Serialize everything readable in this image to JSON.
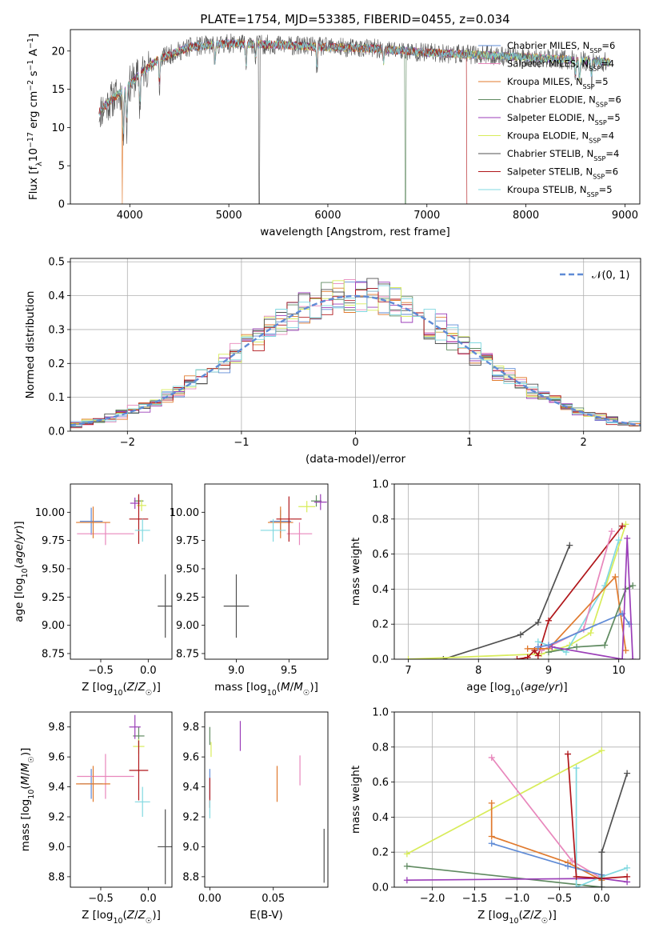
{
  "colors": [
    "#5f8bd6",
    "#e887bc",
    "#e07a2e",
    "#5f8a60",
    "#9b3eb8",
    "#d8ec5a",
    "#505050",
    "#b0161a",
    "#80d8e0"
  ],
  "series_names": [
    "Chabrier MILES, N<sub>SSP</sub>=6",
    "Salpeter MILES, N<sub>SSP</sub>=4",
    "Kroupa MILES, N<sub>SSP</sub>=5",
    "Chabrier ELODIE, N<sub>SSP</sub>=6",
    "Salpeter ELODIE, N<sub>SSP</sub>=5",
    "Kroupa ELODIE, N<sub>SSP</sub>=4",
    "Chabrier STELIB, N<sub>SSP</sub>=4",
    "Salpeter STELIB, N<sub>SSP</sub>=6",
    "Kroupa STELIB, N<sub>SSP</sub>=5"
  ],
  "chart_data": [
    {
      "id": "spectrum",
      "type": "line",
      "title": "PLATE=1754, MJD=53385, FIBERID=0455, z=0.034",
      "xlabel": "wavelength [Angstrom, rest frame]",
      "ylabel": "Flux [f<sub>λ</sub>10<sup>−17</sup> erg cm<sup>−2</sup> s<sup>−1</sup> A<sup>−1</sup>]",
      "xlim": [
        3400,
        9150
      ],
      "ylim": [
        0,
        22.8
      ],
      "xticks": [
        4000,
        5000,
        6000,
        7000,
        8000,
        9000
      ],
      "yticks": [
        0,
        5,
        10,
        15,
        20
      ],
      "grid": false,
      "legend": "upper right",
      "spectrum_range": [
        3690,
        8850
      ],
      "continuum": [
        [
          3690,
          12
        ],
        [
          3800,
          13.5
        ],
        [
          3950,
          15
        ],
        [
          4100,
          17
        ],
        [
          4300,
          19
        ],
        [
          4600,
          20.5
        ],
        [
          5000,
          21
        ],
        [
          5500,
          20.8
        ],
        [
          6000,
          20.5
        ],
        [
          6500,
          20.3
        ],
        [
          7000,
          19.8
        ],
        [
          7500,
          19.5
        ],
        [
          8000,
          19.2
        ],
        [
          8500,
          18.8
        ],
        [
          8850,
          18.5
        ]
      ],
      "absorption_lines": [
        [
          3934,
          7
        ],
        [
          3969,
          6
        ],
        [
          4102,
          5
        ],
        [
          4300,
          4
        ],
        [
          4861,
          3
        ],
        [
          5175,
          3.5
        ],
        [
          5270,
          2
        ],
        [
          5890,
          3
        ],
        [
          6563,
          2
        ],
        [
          8500,
          2.5
        ],
        [
          8542,
          3
        ],
        [
          8662,
          2.5
        ]
      ],
      "model_dropouts": [
        [
          3920,
          3925,
          2
        ],
        [
          5300,
          5310,
          6
        ],
        [
          6780,
          6790,
          3
        ],
        [
          7400,
          7430,
          7
        ]
      ]
    },
    {
      "id": "residuals",
      "type": "histogram",
      "xlabel": "(data-model)/error",
      "ylabel": "Normed distribution",
      "xlim": [
        -2.5,
        2.5
      ],
      "ylim": [
        0,
        0.51
      ],
      "xticks": [
        -2,
        -1,
        0,
        1,
        2
      ],
      "yticks": [
        0.0,
        0.1,
        0.2,
        0.3,
        0.4,
        0.5
      ],
      "grid": true,
      "legend": "upper right",
      "reference_label": "𝒩(0, 1)",
      "bin_width": 0.1,
      "bin_start": -2.5,
      "noise_seed": 7
    },
    {
      "id": "age_vs_Z",
      "type": "errorbar",
      "xlabel": "Z [log<sub>10</sub>(<i>Z</i>/<i>Z</i><sub>☉</sub>)]",
      "ylabel": "age  [log<sub>10</sub>(<i>age</i>/<i>yr</i>)]",
      "xlim": [
        -0.82,
        0.25
      ],
      "ylim": [
        8.7,
        10.25
      ],
      "xticks": [
        -0.5,
        0.0
      ],
      "yticks": [
        8.75,
        9.0,
        9.25,
        9.5,
        9.75,
        10.0
      ],
      "points": [
        {
          "s": 0,
          "x": -0.6,
          "y": 9.92,
          "xe": 0.12,
          "ye": 0.12
        },
        {
          "s": 1,
          "x": -0.45,
          "y": 9.81,
          "xe": 0.3,
          "ye": 0.1
        },
        {
          "s": 2,
          "x": -0.58,
          "y": 9.91,
          "xe": 0.18,
          "ye": 0.14
        },
        {
          "s": 3,
          "x": -0.1,
          "y": 10.1,
          "xe": 0.05,
          "ye": 0.05
        },
        {
          "s": 4,
          "x": -0.14,
          "y": 10.08,
          "xe": 0.05,
          "ye": 0.05
        },
        {
          "s": 5,
          "x": -0.07,
          "y": 10.06,
          "xe": 0.05,
          "ye": 0.05
        },
        {
          "s": 6,
          "x": 0.18,
          "y": 9.17,
          "xe": 0.08,
          "ye": 0.28
        },
        {
          "s": 7,
          "x": -0.1,
          "y": 9.94,
          "xe": 0.1,
          "ye": 0.22
        },
        {
          "s": 8,
          "x": -0.06,
          "y": 9.84,
          "xe": 0.08,
          "ye": 0.1
        }
      ]
    },
    {
      "id": "age_vs_mass",
      "type": "errorbar",
      "xlabel": "mass [log<sub>10</sub>(<i>M</i>/<i>M</i><sub>☉</sub>)]",
      "ylabel": "",
      "xlim": [
        8.7,
        9.87
      ],
      "ylim": [
        8.7,
        10.25
      ],
      "xticks": [
        9.0,
        9.5
      ],
      "yticks": [
        8.75,
        9.0,
        9.25,
        9.5,
        9.75,
        10.0
      ],
      "points": [
        {
          "s": 0,
          "x": 9.42,
          "y": 9.92,
          "xe": 0.1,
          "ye": 0.1
        },
        {
          "s": 1,
          "x": 9.6,
          "y": 9.81,
          "xe": 0.12,
          "ye": 0.1
        },
        {
          "s": 2,
          "x": 9.42,
          "y": 9.91,
          "xe": 0.12,
          "ye": 0.14
        },
        {
          "s": 3,
          "x": 9.76,
          "y": 10.1,
          "xe": 0.05,
          "ye": 0.05
        },
        {
          "s": 4,
          "x": 9.8,
          "y": 10.09,
          "xe": 0.06,
          "ye": 0.07
        },
        {
          "s": 5,
          "x": 9.67,
          "y": 10.05,
          "xe": 0.08,
          "ye": 0.05
        },
        {
          "s": 6,
          "x": 9.0,
          "y": 9.17,
          "xe": 0.12,
          "ye": 0.28
        },
        {
          "s": 7,
          "x": 9.5,
          "y": 9.94,
          "xe": 0.12,
          "ye": 0.2
        },
        {
          "s": 8,
          "x": 9.35,
          "y": 9.84,
          "xe": 0.12,
          "ye": 0.1
        }
      ]
    },
    {
      "id": "mass_vs_Z",
      "type": "errorbar",
      "xlabel": "Z [log<sub>10</sub>(<i>Z</i>/<i>Z</i><sub>☉</sub>)]",
      "ylabel": "mass [log<sub>10</sub>(<i>M</i>/<i>M</i><sub>☉</sub>)]",
      "xlim": [
        -0.82,
        0.25
      ],
      "ylim": [
        8.73,
        9.9
      ],
      "xticks": [
        -0.5,
        0.0
      ],
      "yticks": [
        8.8,
        9.0,
        9.2,
        9.4,
        9.6,
        9.8
      ],
      "points": [
        {
          "s": 0,
          "x": -0.6,
          "y": 9.42,
          "xe": 0.12,
          "ye": 0.1
        },
        {
          "s": 1,
          "x": -0.45,
          "y": 9.47,
          "xe": 0.3,
          "ye": 0.15
        },
        {
          "s": 2,
          "x": -0.58,
          "y": 9.42,
          "xe": 0.18,
          "ye": 0.12
        },
        {
          "s": 3,
          "x": -0.1,
          "y": 9.74,
          "xe": 0.06,
          "ye": 0.06
        },
        {
          "s": 4,
          "x": -0.14,
          "y": 9.8,
          "xe": 0.06,
          "ye": 0.08
        },
        {
          "s": 5,
          "x": -0.1,
          "y": 9.67,
          "xe": 0.06,
          "ye": 0.05
        },
        {
          "s": 6,
          "x": 0.18,
          "y": 9.0,
          "xe": 0.08,
          "ye": 0.25
        },
        {
          "s": 7,
          "x": -0.1,
          "y": 9.51,
          "xe": 0.1,
          "ye": 0.2
        },
        {
          "s": 8,
          "x": -0.06,
          "y": 9.3,
          "xe": 0.08,
          "ye": 0.1
        }
      ]
    },
    {
      "id": "mass_vs_ebv",
      "type": "errorbar",
      "xlabel": "E(B-V)",
      "ylabel": "",
      "xlim": [
        -0.004,
        0.093
      ],
      "ylim": [
        8.73,
        9.9
      ],
      "xticks": [
        0.0,
        0.05
      ],
      "yticks": [
        8.8,
        9.0,
        9.2,
        9.4,
        9.6,
        9.8
      ],
      "points": [
        {
          "s": 0,
          "x": 0.0,
          "y": 9.42,
          "xe": 0,
          "ye": 0.1
        },
        {
          "s": 1,
          "x": 0.071,
          "y": 9.51,
          "xe": 0,
          "ye": 0.1
        },
        {
          "s": 2,
          "x": 0.053,
          "y": 9.42,
          "xe": 0,
          "ye": 0.12
        },
        {
          "s": 3,
          "x": 0.0,
          "y": 9.74,
          "xe": 0,
          "ye": 0.06
        },
        {
          "s": 4,
          "x": 0.024,
          "y": 9.74,
          "xe": 0,
          "ye": 0.1
        },
        {
          "s": 5,
          "x": 0.001,
          "y": 9.65,
          "xe": 0,
          "ye": 0.05
        },
        {
          "s": 6,
          "x": 0.09,
          "y": 8.94,
          "xe": 0,
          "ye": 0.18
        },
        {
          "s": 7,
          "x": 0.0,
          "y": 9.36,
          "xe": 0,
          "ye": 0.1
        },
        {
          "s": 8,
          "x": 0.0,
          "y": 9.25,
          "xe": 0,
          "ye": 0.06
        }
      ]
    },
    {
      "id": "massweight_vs_age",
      "type": "line",
      "xlabel": "age  [log<sub>10</sub>(<i>age</i>/<i>yr</i>)]",
      "ylabel": "mass weight",
      "xlim": [
        6.8,
        10.3
      ],
      "ylim": [
        0,
        1.0
      ],
      "xticks": [
        7,
        8,
        9,
        10
      ],
      "yticks": [
        0.0,
        0.2,
        0.4,
        0.6,
        0.8,
        1.0
      ],
      "grid": true,
      "series": [
        {
          "s": 6,
          "pts": [
            [
              7.5,
              0.0
            ],
            [
              8.6,
              0.14
            ],
            [
              8.85,
              0.21
            ],
            [
              9.3,
              0.65
            ]
          ]
        },
        {
          "s": 5,
          "pts": [
            [
              7.0,
              0.0
            ],
            [
              8.9,
              0.03
            ],
            [
              9.3,
              0.08
            ],
            [
              9.6,
              0.15
            ],
            [
              10.1,
              0.77
            ]
          ]
        },
        {
          "s": 7,
          "pts": [
            [
              8.55,
              0.0
            ],
            [
              8.7,
              0.01
            ],
            [
              8.8,
              0.05
            ],
            [
              8.85,
              0.02
            ],
            [
              9.0,
              0.22
            ],
            [
              10.05,
              0.76
            ]
          ]
        },
        {
          "s": 8,
          "pts": [
            [
              8.85,
              0.1
            ],
            [
              9.25,
              0.04
            ],
            [
              9.8,
              0.42
            ],
            [
              10.0,
              0.68
            ]
          ]
        },
        {
          "s": 1,
          "pts": [
            [
              8.9,
              0.05
            ],
            [
              9.5,
              0.17
            ],
            [
              9.9,
              0.73
            ]
          ]
        },
        {
          "s": 2,
          "pts": [
            [
              8.7,
              0.06
            ],
            [
              9.0,
              0.06
            ],
            [
              9.95,
              0.47
            ],
            [
              10.1,
              0.05
            ]
          ]
        },
        {
          "s": 0,
          "pts": [
            [
              8.85,
              0.07
            ],
            [
              9.0,
              0.08
            ],
            [
              10.05,
              0.26
            ],
            [
              10.15,
              0.2
            ]
          ]
        },
        {
          "s": 3,
          "pts": [
            [
              9.0,
              0.04
            ],
            [
              9.4,
              0.07
            ],
            [
              9.8,
              0.08
            ],
            [
              10.1,
              0.4
            ],
            [
              10.2,
              0.42
            ]
          ]
        },
        {
          "s": 4,
          "pts": [
            [
              9.05,
              0.07
            ],
            [
              10.05,
              0.0
            ],
            [
              10.12,
              0.69
            ],
            [
              10.2,
              0.0
            ]
          ]
        }
      ]
    },
    {
      "id": "massweight_vs_Z",
      "type": "line",
      "xlabel": "Z [log<sub>10</sub>(<i>Z</i>/<i>Z</i><sub>☉</sub>)]",
      "ylabel": "mass weight",
      "xlim": [
        -2.45,
        0.45
      ],
      "ylim": [
        0,
        1.0
      ],
      "xticks": [
        -2.0,
        -1.5,
        -1.0,
        -0.5,
        0.0
      ],
      "yticks": [
        0.0,
        0.2,
        0.4,
        0.6,
        0.8,
        1.0
      ],
      "grid": true,
      "series": [
        {
          "s": 5,
          "pts": [
            [
              -2.3,
              0.19
            ],
            [
              0.0,
              0.78
            ]
          ]
        },
        {
          "s": 1,
          "pts": [
            [
              -1.3,
              0.74
            ],
            [
              -0.35,
              0.15
            ],
            [
              0.0,
              0.05
            ]
          ]
        },
        {
          "s": 2,
          "pts": [
            [
              -1.3,
              0.48
            ],
            [
              -1.3,
              0.29
            ],
            [
              -0.4,
              0.14
            ],
            [
              0.0,
              0.04
            ]
          ]
        },
        {
          "s": 0,
          "pts": [
            [
              -1.3,
              0.25
            ],
            [
              -0.4,
              0.12
            ],
            [
              0.0,
              0.07
            ]
          ]
        },
        {
          "s": 3,
          "pts": [
            [
              -2.3,
              0.12
            ],
            [
              0.0,
              0.0
            ]
          ]
        },
        {
          "s": 4,
          "pts": [
            [
              -2.3,
              0.04
            ],
            [
              0.0,
              0.05
            ],
            [
              0.3,
              0.03
            ]
          ]
        },
        {
          "s": 8,
          "pts": [
            [
              -0.3,
              0.68
            ],
            [
              -0.3,
              0.0
            ],
            [
              0.0,
              0.06
            ],
            [
              0.3,
              0.11
            ]
          ]
        },
        {
          "s": 7,
          "pts": [
            [
              -0.4,
              0.76
            ],
            [
              -0.3,
              0.06
            ],
            [
              0.0,
              0.05
            ],
            [
              0.3,
              0.06
            ]
          ]
        },
        {
          "s": 6,
          "pts": [
            [
              0.0,
              0.0
            ],
            [
              0.0,
              0.2
            ],
            [
              0.3,
              0.65
            ]
          ]
        }
      ]
    }
  ]
}
